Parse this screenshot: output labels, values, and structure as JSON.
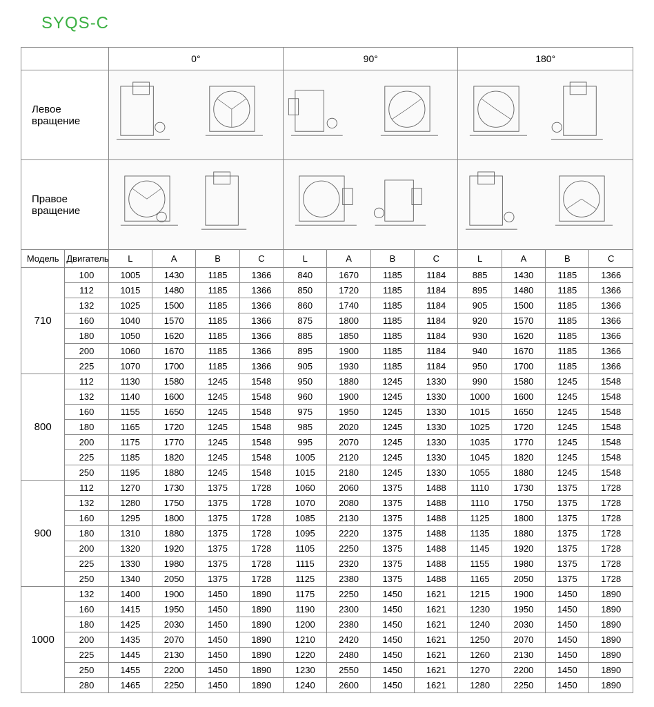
{
  "title": "SYQS-C",
  "angle_headers": [
    "0°",
    "90°",
    "180°"
  ],
  "rotation_labels": [
    "Левое вращение",
    "Правое вращение"
  ],
  "model_header": "Модель",
  "engine_header": "Двигатель",
  "sub_headers": [
    "L",
    "A",
    "B",
    "C"
  ],
  "colors": {
    "title": "#3cb043",
    "border": "#888888",
    "text": "#000000"
  },
  "groups": [
    {
      "model": "710",
      "rows": [
        {
          "engine": "100",
          "v": [
            1005,
            1430,
            1185,
            1366,
            840,
            1670,
            1185,
            1184,
            885,
            1430,
            1185,
            1366
          ]
        },
        {
          "engine": "112",
          "v": [
            1015,
            1480,
            1185,
            1366,
            850,
            1720,
            1185,
            1184,
            895,
            1480,
            1185,
            1366
          ]
        },
        {
          "engine": "132",
          "v": [
            1025,
            1500,
            1185,
            1366,
            860,
            1740,
            1185,
            1184,
            905,
            1500,
            1185,
            1366
          ]
        },
        {
          "engine": "160",
          "v": [
            1040,
            1570,
            1185,
            1366,
            875,
            1800,
            1185,
            1184,
            920,
            1570,
            1185,
            1366
          ]
        },
        {
          "engine": "180",
          "v": [
            1050,
            1620,
            1185,
            1366,
            885,
            1850,
            1185,
            1184,
            930,
            1620,
            1185,
            1366
          ]
        },
        {
          "engine": "200",
          "v": [
            1060,
            1670,
            1185,
            1366,
            895,
            1900,
            1185,
            1184,
            940,
            1670,
            1185,
            1366
          ]
        },
        {
          "engine": "225",
          "v": [
            1070,
            1700,
            1185,
            1366,
            905,
            1930,
            1185,
            1184,
            950,
            1700,
            1185,
            1366
          ]
        }
      ]
    },
    {
      "model": "800",
      "rows": [
        {
          "engine": "112",
          "v": [
            1130,
            1580,
            1245,
            1548,
            950,
            1880,
            1245,
            1330,
            990,
            1580,
            1245,
            1548
          ]
        },
        {
          "engine": "132",
          "v": [
            1140,
            1600,
            1245,
            1548,
            960,
            1900,
            1245,
            1330,
            1000,
            1600,
            1245,
            1548
          ]
        },
        {
          "engine": "160",
          "v": [
            1155,
            1650,
            1245,
            1548,
            975,
            1950,
            1245,
            1330,
            1015,
            1650,
            1245,
            1548
          ]
        },
        {
          "engine": "180",
          "v": [
            1165,
            1720,
            1245,
            1548,
            985,
            2020,
            1245,
            1330,
            1025,
            1720,
            1245,
            1548
          ]
        },
        {
          "engine": "200",
          "v": [
            1175,
            1770,
            1245,
            1548,
            995,
            2070,
            1245,
            1330,
            1035,
            1770,
            1245,
            1548
          ]
        },
        {
          "engine": "225",
          "v": [
            1185,
            1820,
            1245,
            1548,
            1005,
            2120,
            1245,
            1330,
            1045,
            1820,
            1245,
            1548
          ]
        },
        {
          "engine": "250",
          "v": [
            1195,
            1880,
            1245,
            1548,
            1015,
            2180,
            1245,
            1330,
            1055,
            1880,
            1245,
            1548
          ]
        }
      ]
    },
    {
      "model": "900",
      "rows": [
        {
          "engine": "112",
          "v": [
            1270,
            1730,
            1375,
            1728,
            1060,
            2060,
            1375,
            1488,
            1110,
            1730,
            1375,
            1728
          ]
        },
        {
          "engine": "132",
          "v": [
            1280,
            1750,
            1375,
            1728,
            1070,
            2080,
            1375,
            1488,
            1110,
            1750,
            1375,
            1728
          ]
        },
        {
          "engine": "160",
          "v": [
            1295,
            1800,
            1375,
            1728,
            1085,
            2130,
            1375,
            1488,
            1125,
            1800,
            1375,
            1728
          ]
        },
        {
          "engine": "180",
          "v": [
            1310,
            1880,
            1375,
            1728,
            1095,
            2220,
            1375,
            1488,
            1135,
            1880,
            1375,
            1728
          ]
        },
        {
          "engine": "200",
          "v": [
            1320,
            1920,
            1375,
            1728,
            1105,
            2250,
            1375,
            1488,
            1145,
            1920,
            1375,
            1728
          ]
        },
        {
          "engine": "225",
          "v": [
            1330,
            1980,
            1375,
            1728,
            1115,
            2320,
            1375,
            1488,
            1155,
            1980,
            1375,
            1728
          ]
        },
        {
          "engine": "250",
          "v": [
            1340,
            2050,
            1375,
            1728,
            1125,
            2380,
            1375,
            1488,
            1165,
            2050,
            1375,
            1728
          ]
        }
      ]
    },
    {
      "model": "1000",
      "rows": [
        {
          "engine": "132",
          "v": [
            1400,
            1900,
            1450,
            1890,
            1175,
            2250,
            1450,
            1621,
            1215,
            1900,
            1450,
            1890
          ]
        },
        {
          "engine": "160",
          "v": [
            1415,
            1950,
            1450,
            1890,
            1190,
            2300,
            1450,
            1621,
            1230,
            1950,
            1450,
            1890
          ]
        },
        {
          "engine": "180",
          "v": [
            1425,
            2030,
            1450,
            1890,
            1200,
            2380,
            1450,
            1621,
            1240,
            2030,
            1450,
            1890
          ]
        },
        {
          "engine": "200",
          "v": [
            1435,
            2070,
            1450,
            1890,
            1210,
            2420,
            1450,
            1621,
            1250,
            2070,
            1450,
            1890
          ]
        },
        {
          "engine": "225",
          "v": [
            1445,
            2130,
            1450,
            1890,
            1220,
            2480,
            1450,
            1621,
            1260,
            2130,
            1450,
            1890
          ]
        },
        {
          "engine": "250",
          "v": [
            1455,
            2200,
            1450,
            1890,
            1230,
            2550,
            1450,
            1621,
            1270,
            2200,
            1450,
            1890
          ]
        },
        {
          "engine": "280",
          "v": [
            1465,
            2250,
            1450,
            1890,
            1240,
            2600,
            1450,
            1621,
            1280,
            2250,
            1450,
            1890
          ]
        }
      ]
    }
  ]
}
